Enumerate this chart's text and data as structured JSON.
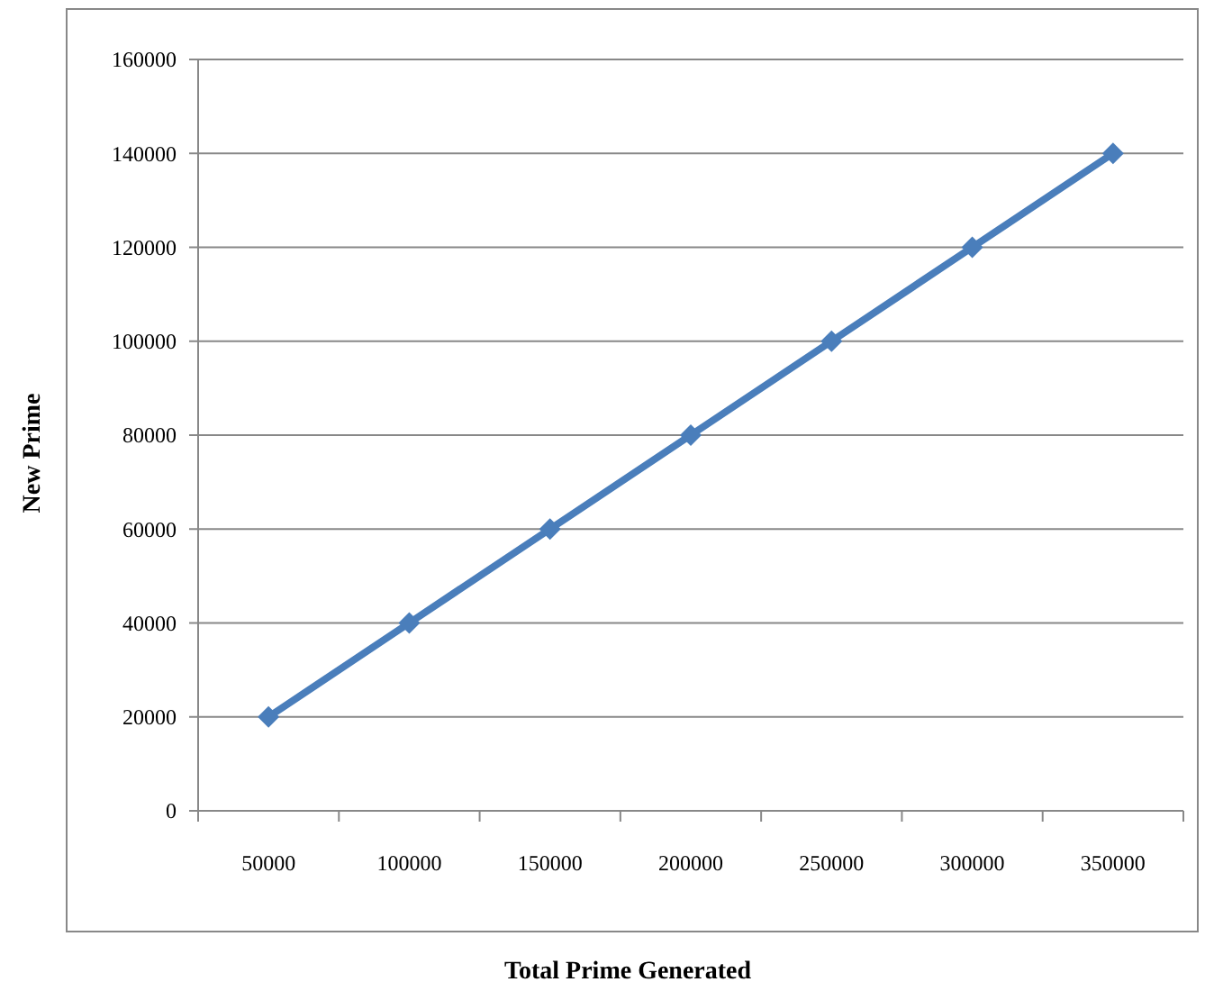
{
  "chart_data": {
    "type": "line",
    "xlabel": "Total Prime Generated",
    "ylabel": "New Prime",
    "categories": [
      "50000",
      "100000",
      "150000",
      "200000",
      "250000",
      "300000",
      "350000"
    ],
    "series": [
      {
        "color": "#4a7ebb",
        "values": [
          20000,
          40000,
          60000,
          80000,
          100000,
          120000,
          140000
        ]
      }
    ],
    "ylim": [
      0,
      160000
    ],
    "yticks": [
      0,
      20000,
      40000,
      60000,
      80000,
      100000,
      120000,
      140000,
      160000
    ],
    "grid": "y",
    "marker": "diamond",
    "line_style": "solid"
  }
}
